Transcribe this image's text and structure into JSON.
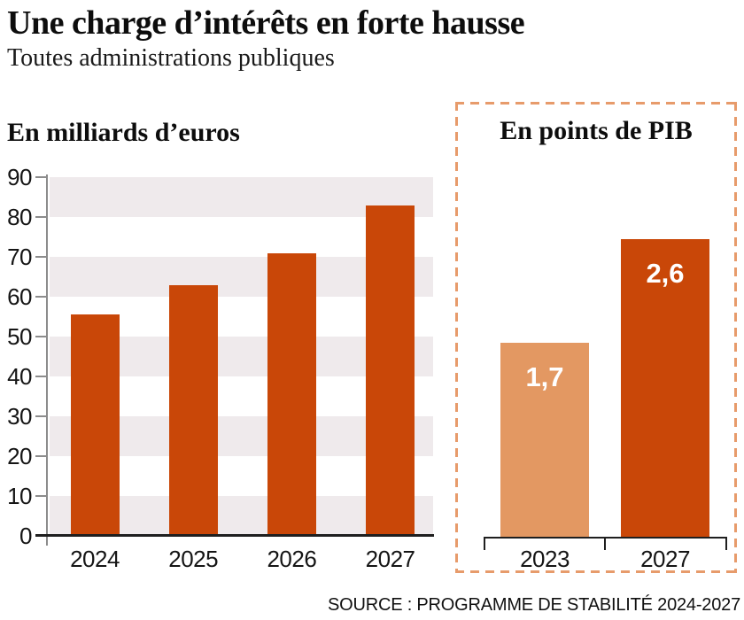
{
  "header": {
    "title": "Une charge d’intérêts en forte hausse",
    "subtitle": "Toutes administrations publiques"
  },
  "source": "SOURCE : PROGRAMME DE STABILITÉ 2024-2027",
  "colors": {
    "bar_dark": "#c94708",
    "bar_light": "#e39862",
    "band_gray": "#efeaec",
    "dashed_border": "#e79b6b",
    "axis_gray": "#8c8c8c",
    "baseline_dark": "#1f1f1f",
    "text_dark": "#151515",
    "value_label_white": "#ffffff"
  },
  "chart_data": [
    {
      "type": "bar",
      "title": "En milliards d’euros",
      "categories": [
        "2024",
        "2025",
        "2026",
        "2027"
      ],
      "values": [
        55.5,
        63,
        71,
        83
      ],
      "ylim": [
        0,
        90
      ],
      "yticks": [
        0,
        10,
        20,
        30,
        40,
        50,
        60,
        70,
        80,
        90
      ],
      "grid": "alternating horizontal gray bands every 10 units",
      "legend": "none"
    },
    {
      "type": "bar",
      "title": "En points de PIB",
      "categories": [
        "2023",
        "2027"
      ],
      "values": [
        1.7,
        2.6
      ],
      "data_labels": [
        "1,7",
        "2,6"
      ],
      "ylim": [
        0,
        2.9
      ],
      "yticks": [],
      "grid": "none",
      "legend": "none",
      "frame": "dashed orange border panel"
    }
  ]
}
